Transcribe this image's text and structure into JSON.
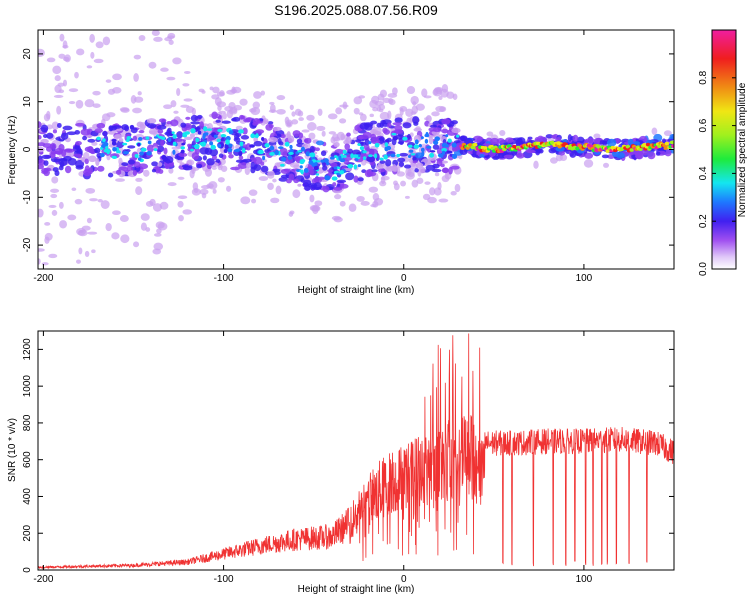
{
  "title": "S196.2025.088.07.56.R09",
  "chart_data": [
    {
      "type": "heatmap",
      "xlabel": "Height of straight line (km)",
      "ylabel": "Frequency (Hz)",
      "xlim": [
        -203,
        150
      ],
      "ylim": [
        -25,
        25
      ],
      "xticks": [
        "-200",
        "-100",
        "0",
        "100"
      ],
      "yticks": [
        "20",
        "10",
        "0",
        "-10",
        "-20"
      ],
      "colorbar": {
        "label": "Normalized spectral amplitude",
        "range": [
          0.0,
          1.0
        ],
        "ticks": [
          "0.0",
          "0.2",
          "0.4",
          "0.6",
          "0.8"
        ],
        "colors": [
          "#ffffff",
          "#c9a0f0",
          "#8a3cf0",
          "#3c1ef0",
          "#1e78ff",
          "#14e6f0",
          "#1eeb3c",
          "#a0f01e",
          "#f0e614",
          "#f08c14",
          "#f01e1e",
          "#f01ea0"
        ]
      },
      "band_center_hz": [
        {
          "x": -200,
          "y": 0
        },
        {
          "x": -150,
          "y": 0
        },
        {
          "x": -110,
          "y": 2
        },
        {
          "x": -80,
          "y": 1
        },
        {
          "x": -60,
          "y": -2
        },
        {
          "x": -40,
          "y": -4
        },
        {
          "x": -20,
          "y": 0
        },
        {
          "x": 0,
          "y": 1
        },
        {
          "x": 30,
          "y": 1
        },
        {
          "x": 50,
          "y": 0
        },
        {
          "x": 80,
          "y": 1
        },
        {
          "x": 120,
          "y": 0
        },
        {
          "x": 150,
          "y": 1
        }
      ]
    },
    {
      "type": "line",
      "xlabel": "Height of straight line (km)",
      "ylabel": "SNR (10 * v/v)",
      "xlim": [
        -203,
        150
      ],
      "ylim": [
        0,
        1300
      ],
      "xticks": [
        "-200",
        "-100",
        "0",
        "100"
      ],
      "yticks": [
        "0",
        "200",
        "400",
        "600",
        "800",
        "1000",
        "1200"
      ],
      "color": "#f03232",
      "envelope": [
        {
          "x": -203,
          "y": 20
        },
        {
          "x": -150,
          "y": 35
        },
        {
          "x": -120,
          "y": 60
        },
        {
          "x": -100,
          "y": 120
        },
        {
          "x": -80,
          "y": 180
        },
        {
          "x": -60,
          "y": 230
        },
        {
          "x": -40,
          "y": 250
        },
        {
          "x": -30,
          "y": 350
        },
        {
          "x": -20,
          "y": 520
        },
        {
          "x": -10,
          "y": 640
        },
        {
          "x": 0,
          "y": 700
        },
        {
          "x": 10,
          "y": 750
        },
        {
          "x": 20,
          "y": 800
        },
        {
          "x": 30,
          "y": 850
        },
        {
          "x": 40,
          "y": 850
        },
        {
          "x": 45,
          "y": 690
        },
        {
          "x": 60,
          "y": 690
        },
        {
          "x": 80,
          "y": 700
        },
        {
          "x": 100,
          "y": 700
        },
        {
          "x": 120,
          "y": 710
        },
        {
          "x": 140,
          "y": 690
        },
        {
          "x": 150,
          "y": 640
        }
      ],
      "dropouts_x": [
        55,
        60,
        72,
        83,
        90,
        95,
        101,
        105,
        110,
        113,
        118,
        125,
        135
      ]
    }
  ]
}
